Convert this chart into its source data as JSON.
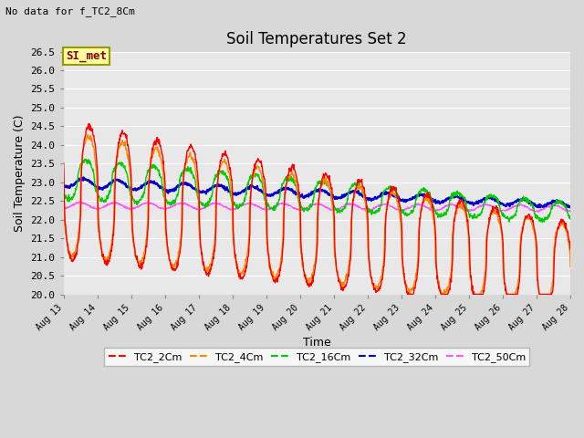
{
  "title": "Soil Temperatures Set 2",
  "subtitle": "No data for f_TC2_8Cm",
  "xlabel": "Time",
  "ylabel": "Soil Temperature (C)",
  "ylim": [
    20.0,
    26.5
  ],
  "yticks": [
    20.0,
    20.5,
    21.0,
    21.5,
    22.0,
    22.5,
    23.0,
    23.5,
    24.0,
    24.5,
    25.0,
    25.5,
    26.0,
    26.5
  ],
  "fig_bg": "#d8d8d8",
  "plot_bg": "#e8e8e8",
  "grid_color": "#ffffff",
  "annotation": {
    "text": "SI_met",
    "facecolor": "#ffffa0",
    "edgecolor": "#999900",
    "textcolor": "#8b0000"
  },
  "series": {
    "TC2_2Cm": {
      "color": "#ff0000",
      "lw": 1.0
    },
    "TC2_4Cm": {
      "color": "#ff8800",
      "lw": 1.0
    },
    "TC2_16Cm": {
      "color": "#00cc00",
      "lw": 1.0
    },
    "TC2_32Cm": {
      "color": "#0000cc",
      "lw": 1.5
    },
    "TC2_50Cm": {
      "color": "#ff55ff",
      "lw": 0.9
    }
  },
  "x_start_day": 13,
  "x_end_day": 28,
  "x_tick_days": [
    13,
    14,
    15,
    16,
    17,
    18,
    19,
    20,
    21,
    22,
    23,
    24,
    25,
    26,
    27,
    28
  ],
  "num_points": 1440
}
